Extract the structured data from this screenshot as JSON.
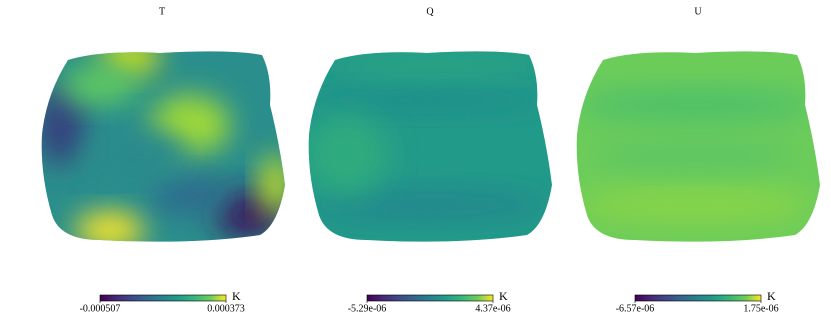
{
  "chart_data": [
    {
      "type": "map",
      "title": "T",
      "unit": "K",
      "clim": [
        -0.000507,
        0.000373
      ],
      "cticks": [
        -0.000507,
        0.000373
      ]
    },
    {
      "type": "map",
      "title": "Q",
      "unit": "K",
      "clim": [
        -5.29e-06,
        4.37e-06
      ],
      "cticks": [
        {
          "value": -5.29e-06,
          "label": "-5.29e-06"
        },
        {
          "value": 4.37e-06,
          "label": "4.37e-06"
        }
      ]
    },
    {
      "type": "map",
      "title": "U",
      "unit": "K",
      "clim": [
        -6.57e-06,
        1.75e-06
      ],
      "cticks": [
        {
          "value": -6.57e-06,
          "label": "-6.57e-06"
        },
        {
          "value": 1.75e-06,
          "label": "1.75e-06"
        }
      ]
    }
  ]
}
